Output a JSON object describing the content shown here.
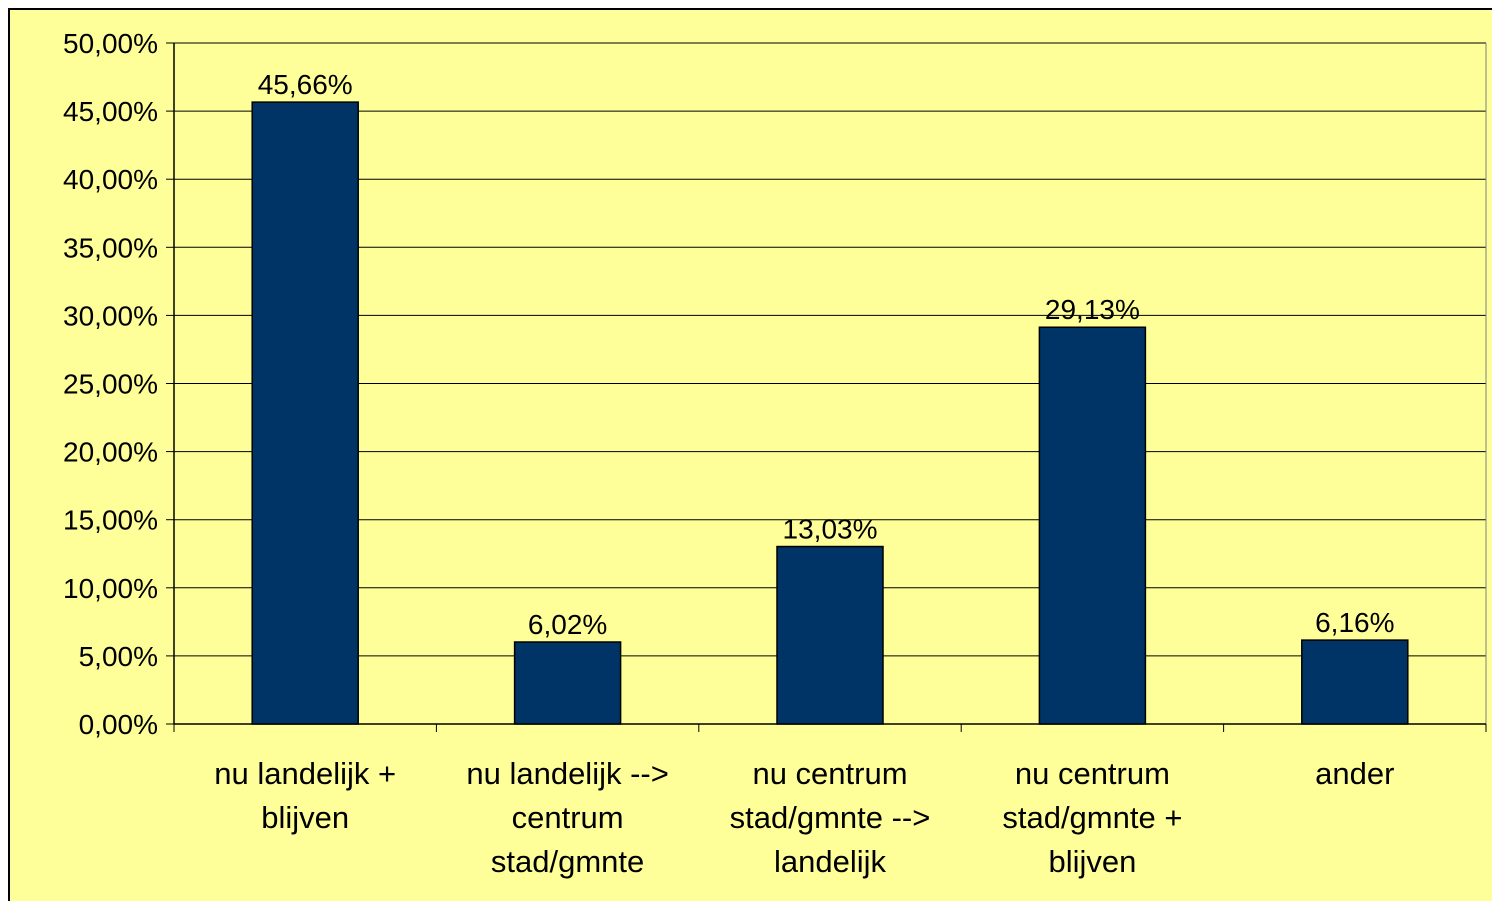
{
  "chart_data": {
    "type": "bar",
    "categories": [
      [
        "nu landelijk +",
        "blijven"
      ],
      [
        "nu landelijk -->",
        "centrum",
        "stad/gmnte"
      ],
      [
        "nu centrum",
        "stad/gmnte -->",
        "landelijk"
      ],
      [
        "nu centrum",
        "stad/gmnte +",
        "blijven"
      ],
      [
        "ander"
      ]
    ],
    "values": [
      45.66,
      6.02,
      13.03,
      29.13,
      6.16
    ],
    "data_labels": [
      "45,66%",
      "6,02%",
      "13,03%",
      "29,13%",
      "6,16%"
    ],
    "y_ticks": [
      0,
      5,
      10,
      15,
      20,
      25,
      30,
      35,
      40,
      45,
      50
    ],
    "y_tick_labels": [
      "0,00%",
      "5,00%",
      "10,00%",
      "15,00%",
      "20,00%",
      "25,00%",
      "30,00%",
      "35,00%",
      "40,00%",
      "45,00%",
      "50,00%"
    ],
    "ylim": [
      0,
      50
    ],
    "grid": true,
    "legend": false,
    "colors": {
      "background": "#ffff99",
      "bar": "#003366",
      "bar_stroke": "#000000",
      "grid": "#000000"
    }
  }
}
